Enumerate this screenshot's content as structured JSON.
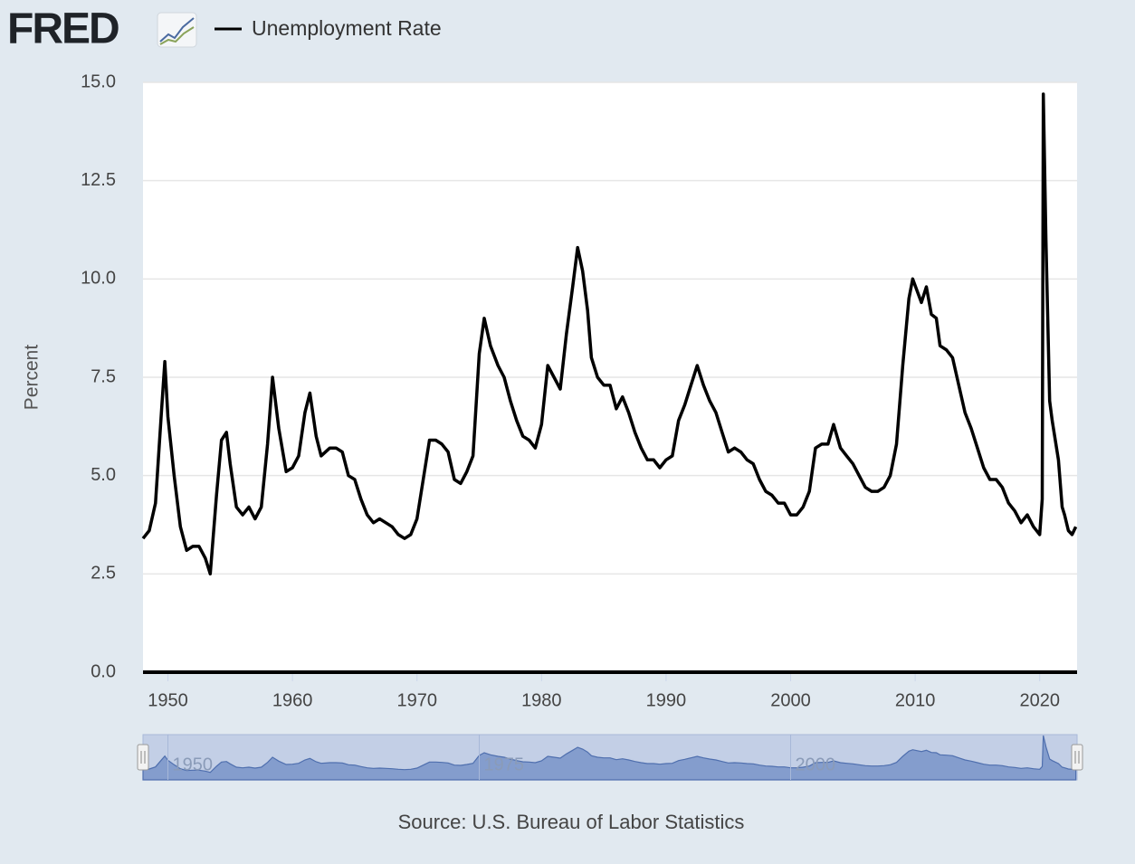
{
  "chart_data": {
    "type": "line",
    "brand": "FRED",
    "source": "Source: U.S. Bureau of Labor Statistics",
    "ylabel": "Percent",
    "xlim": [
      1948,
      2023
    ],
    "xticks": [
      1950,
      1960,
      1970,
      1980,
      1990,
      2000,
      2010,
      2020
    ],
    "ylim": [
      0,
      15
    ],
    "yticks": [
      {
        "value": 0,
        "label": "0.0"
      },
      2.5,
      {
        "value": 5,
        "label": "5.0"
      },
      7.5,
      {
        "value": 10,
        "label": "10.0"
      },
      12.5,
      {
        "value": 15,
        "label": "15.0"
      }
    ],
    "grid": true,
    "x": [
      1948.0,
      1948.5,
      1949.0,
      1949.5,
      1949.75,
      1950.0,
      1950.5,
      1951.0,
      1951.5,
      1952.0,
      1952.5,
      1953.0,
      1953.4,
      1953.9,
      1954.3,
      1954.7,
      1955.0,
      1955.5,
      1956.0,
      1956.5,
      1957.0,
      1957.5,
      1958.0,
      1958.4,
      1958.9,
      1959.5,
      1960.0,
      1960.5,
      1961.0,
      1961.4,
      1961.9,
      1962.3,
      1963.0,
      1963.5,
      1964.0,
      1964.5,
      1965.0,
      1965.5,
      1966.0,
      1966.5,
      1967.0,
      1967.5,
      1968.0,
      1968.5,
      1969.0,
      1969.5,
      1970.0,
      1970.5,
      1971.0,
      1971.5,
      1972.0,
      1972.5,
      1973.0,
      1973.5,
      1974.0,
      1974.5,
      1975.0,
      1975.4,
      1975.9,
      1976.5,
      1977.0,
      1977.5,
      1978.0,
      1978.5,
      1979.0,
      1979.5,
      1980.0,
      1980.5,
      1981.0,
      1981.5,
      1982.0,
      1982.5,
      1982.9,
      1983.3,
      1983.7,
      1984.0,
      1984.5,
      1985.0,
      1985.5,
      1986.0,
      1986.5,
      1987.0,
      1987.5,
      1988.0,
      1988.5,
      1989.0,
      1989.5,
      1990.0,
      1990.5,
      1991.0,
      1991.5,
      1992.0,
      1992.5,
      1993.0,
      1993.5,
      1994.0,
      1994.5,
      1995.0,
      1995.5,
      1996.0,
      1996.5,
      1997.0,
      1997.5,
      1998.0,
      1998.5,
      1999.0,
      1999.5,
      2000.0,
      2000.5,
      2001.0,
      2001.5,
      2002.0,
      2002.5,
      2003.0,
      2003.45,
      2004.0,
      2004.5,
      2005.0,
      2005.5,
      2006.0,
      2006.5,
      2007.0,
      2007.5,
      2008.0,
      2008.5,
      2009.0,
      2009.5,
      2009.8,
      2010.5,
      2010.9,
      2011.3,
      2011.7,
      2012.0,
      2012.5,
      2013.0,
      2013.5,
      2014.0,
      2014.5,
      2015.0,
      2015.5,
      2016.0,
      2016.5,
      2017.0,
      2017.5,
      2018.0,
      2018.5,
      2019.0,
      2019.5,
      2020.0,
      2020.2,
      2020.29,
      2020.5,
      2020.8,
      2021.0,
      2021.5,
      2021.8,
      2022.0,
      2022.3,
      2022.6,
      2022.9
    ],
    "series": [
      {
        "name": "Unemployment Rate",
        "color": "#000000",
        "values": [
          3.4,
          3.6,
          4.3,
          6.7,
          7.9,
          6.5,
          5.0,
          3.7,
          3.1,
          3.2,
          3.2,
          2.9,
          2.5,
          4.5,
          5.9,
          6.1,
          5.3,
          4.2,
          4.0,
          4.2,
          3.9,
          4.2,
          5.8,
          7.5,
          6.2,
          5.1,
          5.2,
          5.5,
          6.6,
          7.1,
          6.0,
          5.5,
          5.7,
          5.7,
          5.6,
          5.0,
          4.9,
          4.4,
          4.0,
          3.8,
          3.9,
          3.8,
          3.7,
          3.5,
          3.4,
          3.5,
          3.9,
          4.9,
          5.9,
          5.9,
          5.8,
          5.6,
          4.9,
          4.8,
          5.1,
          5.5,
          8.1,
          9.0,
          8.3,
          7.8,
          7.5,
          6.9,
          6.4,
          6.0,
          5.9,
          5.7,
          6.3,
          7.8,
          7.5,
          7.2,
          8.6,
          9.8,
          10.8,
          10.2,
          9.2,
          8.0,
          7.5,
          7.3,
          7.3,
          6.7,
          7.0,
          6.6,
          6.1,
          5.7,
          5.4,
          5.4,
          5.2,
          5.4,
          5.5,
          6.4,
          6.8,
          7.3,
          7.8,
          7.3,
          6.9,
          6.6,
          6.1,
          5.6,
          5.7,
          5.6,
          5.4,
          5.3,
          4.9,
          4.6,
          4.5,
          4.3,
          4.3,
          4.0,
          4.0,
          4.2,
          4.6,
          5.7,
          5.8,
          5.8,
          6.3,
          5.7,
          5.5,
          5.3,
          5.0,
          4.7,
          4.6,
          4.6,
          4.7,
          5.0,
          5.8,
          7.8,
          9.5,
          10.0,
          9.4,
          9.8,
          9.1,
          9.0,
          8.3,
          8.2,
          8.0,
          7.3,
          6.6,
          6.2,
          5.7,
          5.2,
          4.9,
          4.9,
          4.7,
          4.3,
          4.1,
          3.8,
          4.0,
          3.7,
          3.5,
          4.4,
          14.7,
          11.0,
          6.9,
          6.4,
          5.4,
          4.2,
          4.0,
          3.6,
          3.5,
          3.7
        ]
      }
    ],
    "navigator": {
      "xticks": [
        1950,
        1975,
        2000
      ],
      "color": "#6f8cc4"
    }
  }
}
